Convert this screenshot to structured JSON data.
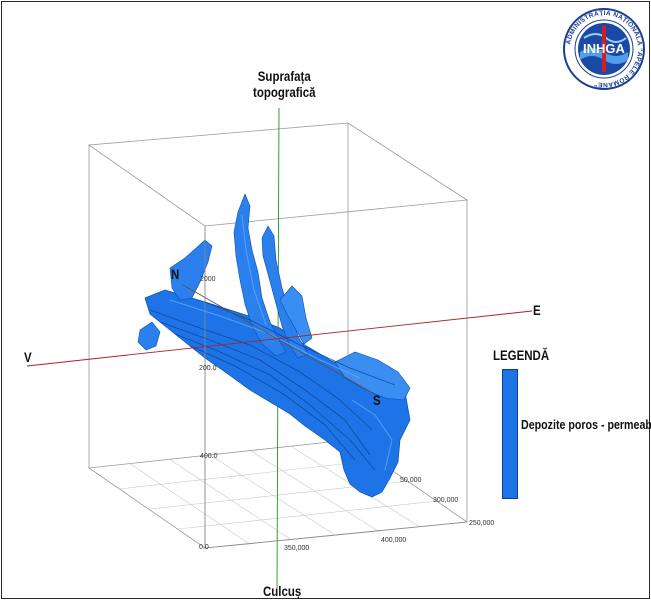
{
  "labels": {
    "top_title_line1": "Suprafața",
    "top_title_line2": "topografică",
    "bottom_title": "Culcuș",
    "north": "N",
    "south": "S",
    "east": "E",
    "west": "V"
  },
  "legend": {
    "title": "LEGENDĂ",
    "items": [
      {
        "label": "Depozite poros - permeabile",
        "color": "#1e73e6"
      }
    ]
  },
  "logo": {
    "center_text": "INHGA",
    "ring_text": "ADMINISTRAȚIA NAȚIONALĂ \"APELE ROMÂNE\""
  },
  "ticks": {
    "depth": [
      "2000",
      "200.0",
      "400.0",
      "0.0"
    ],
    "x_axis": [
      "350,000",
      "400,000"
    ],
    "y_axis": [
      "50,000",
      "300,000",
      "250,000"
    ]
  },
  "colors": {
    "aquifer": "#1e73e6",
    "aquifer_dark": "#0b4fb3",
    "ew_axis": "#b02020",
    "vertical_axis": "#1a9a1a"
  }
}
